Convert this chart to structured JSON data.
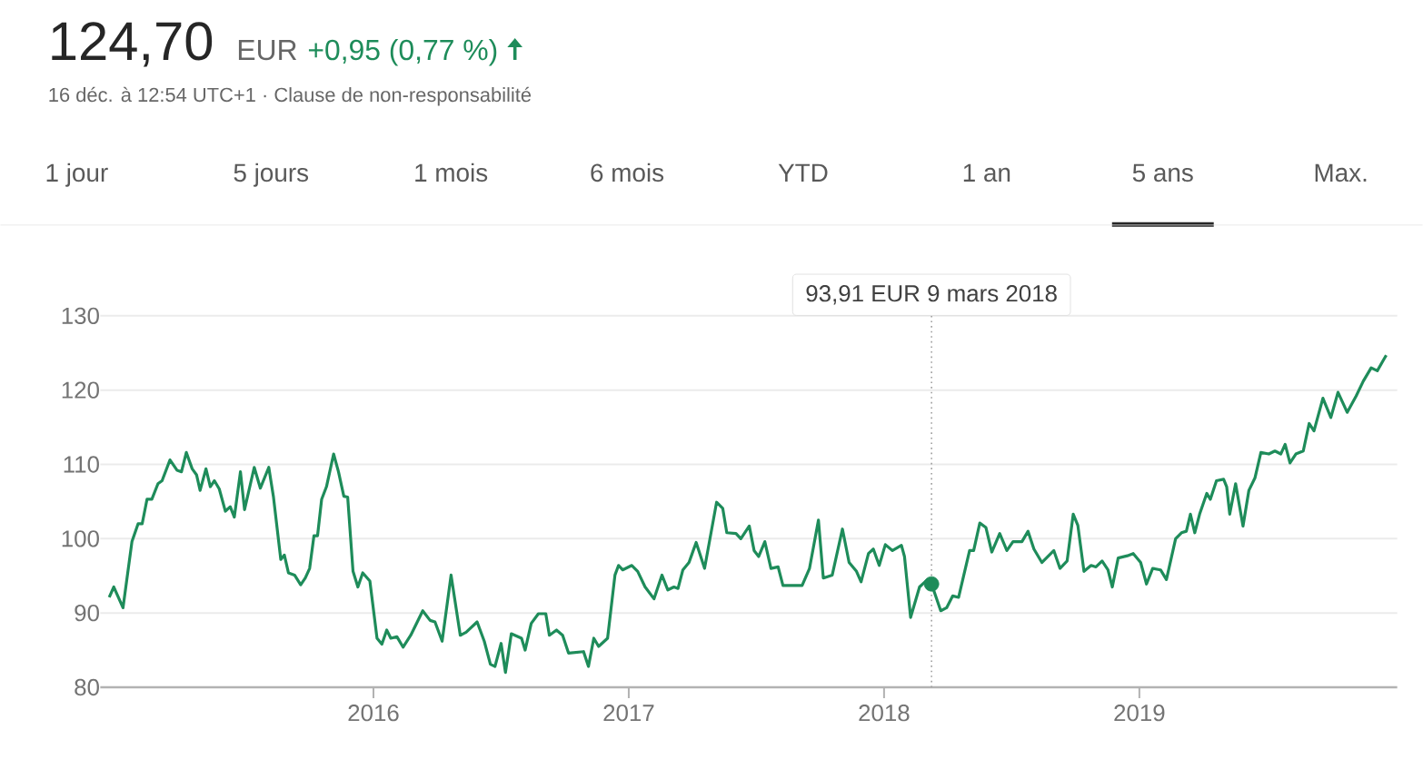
{
  "chart_data": {
    "type": "line",
    "title": "124,70",
    "subtitle": "16 déc. à 12:54 UTC+1 · Clause de non-responsabilité",
    "annotations": [
      "EUR",
      "+0,95 (0,77 %)",
      "1 jour",
      "5 jours",
      "1 mois",
      "6 mois",
      "YTD",
      "1 an",
      "5 ans",
      "Max.",
      "93,91 EUR  9 mars 2018"
    ],
    "xlim": [
      2014.93,
      2020.01
    ],
    "xticks": [
      {
        "value": 2016,
        "label": "2016"
      },
      {
        "value": 2017,
        "label": "2017"
      },
      {
        "value": 2018,
        "label": "2018"
      },
      {
        "value": 2019,
        "label": "2019"
      }
    ],
    "ylim": [
      80,
      130
    ],
    "yticks": [
      80,
      90,
      100,
      110,
      120,
      130
    ],
    "grid": "y",
    "ref_lines": [
      {
        "axis": "x",
        "value": 2018.186,
        "line_style": "dotted",
        "color": "#9e9e9e"
      }
    ],
    "series": [
      {
        "color": "#1e8c5a",
        "marker": "none",
        "x": [
          2014.965,
          2014.983,
          2015.019,
          2015.054,
          2015.078,
          2015.094,
          2015.113,
          2015.132,
          2015.156,
          2015.172,
          2015.203,
          2015.231,
          2015.248,
          2015.267,
          2015.29,
          2015.307,
          2015.321,
          2015.344,
          2015.361,
          2015.377,
          2015.396,
          2015.42,
          2015.439,
          2015.455,
          2015.479,
          2015.495,
          2015.533,
          2015.557,
          2015.59,
          2015.608,
          2015.637,
          2015.651,
          2015.667,
          2015.691,
          2015.715,
          2015.733,
          2015.75,
          2015.767,
          2015.781,
          2015.797,
          2015.816,
          2015.844,
          2015.863,
          2015.884,
          2015.899,
          2015.92,
          2015.939,
          2015.958,
          2015.986,
          2016.014,
          2016.033,
          2016.052,
          2016.068,
          2016.092,
          2016.116,
          2016.146,
          2016.193,
          2016.222,
          2016.241,
          2016.269,
          2016.304,
          2016.34,
          2016.363,
          2016.406,
          2016.434,
          2016.458,
          2016.476,
          2016.5,
          2016.517,
          2016.54,
          2016.58,
          2016.594,
          2016.618,
          2016.646,
          2016.675,
          2016.689,
          2016.717,
          2016.741,
          2016.764,
          2016.823,
          2016.842,
          2016.863,
          2016.882,
          2016.917,
          2016.946,
          2016.96,
          2016.976,
          2017.012,
          2017.035,
          2017.064,
          2017.099,
          2017.13,
          2017.153,
          2017.177,
          2017.193,
          2017.212,
          2017.236,
          2017.264,
          2017.297,
          2017.344,
          2017.368,
          2017.384,
          2017.42,
          2017.439,
          2017.472,
          2017.491,
          2017.509,
          2017.533,
          2017.557,
          2017.585,
          2017.604,
          2017.679,
          2017.708,
          2017.743,
          2017.762,
          2017.797,
          2017.837,
          2017.863,
          2017.892,
          2017.91,
          2017.939,
          2017.958,
          2017.981,
          2018.005,
          2018.033,
          2018.068,
          2018.08,
          2018.104,
          2018.139,
          2018.17,
          2018.186,
          2018.222,
          2018.245,
          2018.269,
          2018.292,
          2018.335,
          2018.351,
          2018.375,
          2018.399,
          2018.422,
          2018.453,
          2018.481,
          2018.505,
          2018.54,
          2018.564,
          2018.587,
          2018.618,
          2018.665,
          2018.689,
          2018.717,
          2018.741,
          2018.759,
          2018.783,
          2018.811,
          2018.83,
          2018.854,
          2018.877,
          2018.894,
          2018.917,
          2018.953,
          2018.976,
          2019.005,
          2019.028,
          2019.052,
          2019.083,
          2019.106,
          2019.142,
          2019.165,
          2019.184,
          2019.2,
          2019.217,
          2019.236,
          2019.264,
          2019.278,
          2019.302,
          2019.33,
          2019.342,
          2019.354,
          2019.377,
          2019.406,
          2019.429,
          2019.453,
          2019.476,
          2019.507,
          2019.531,
          2019.554,
          2019.571,
          2019.59,
          2019.613,
          2019.642,
          2019.665,
          2019.684,
          2019.719,
          2019.75,
          2019.778,
          2019.814,
          2019.849,
          2019.877,
          2019.908,
          2019.932,
          2019.967
        ],
        "values": [
          92.1,
          93.5,
          90.7,
          99.6,
          102,
          102,
          105.3,
          105.3,
          107.4,
          107.8,
          110.6,
          109.2,
          109,
          111.6,
          109.4,
          108.6,
          106.5,
          109.4,
          107,
          107.8,
          106.7,
          103.7,
          104.3,
          102.9,
          109,
          103.9,
          109.6,
          106.8,
          109.6,
          105.7,
          97.2,
          97.8,
          95.4,
          95.1,
          93.8,
          94.7,
          96,
          100.4,
          100.4,
          105.3,
          107,
          111.4,
          109,
          105.7,
          105.6,
          95.6,
          93.5,
          95.4,
          94.3,
          86.6,
          85.8,
          87.7,
          86.6,
          86.8,
          85.4,
          87,
          90.3,
          89,
          88.8,
          86.2,
          95.1,
          87,
          87.4,
          88.8,
          86.2,
          83.1,
          82.8,
          85.9,
          82,
          87.2,
          86.6,
          85,
          88.6,
          89.9,
          89.9,
          87,
          87.7,
          87,
          84.6,
          84.8,
          82.8,
          86.6,
          85.5,
          86.6,
          95.1,
          96.4,
          95.8,
          96.4,
          95.6,
          93.5,
          91.9,
          95.1,
          93.1,
          93.5,
          93.3,
          95.8,
          96.8,
          99.5,
          96,
          104.9,
          104.1,
          100.8,
          100.7,
          100,
          101.7,
          98.4,
          97.6,
          99.6,
          96,
          96.2,
          93.7,
          93.7,
          96,
          102.5,
          94.7,
          95.1,
          101.3,
          96.8,
          95.6,
          94.2,
          98,
          98.6,
          96.4,
          99.2,
          98.4,
          99.1,
          97.6,
          89.4,
          93.5,
          94.5,
          93.91,
          90.3,
          90.7,
          92.3,
          92.1,
          98.4,
          98.4,
          102.1,
          101.5,
          98.2,
          100.7,
          98.4,
          99.6,
          99.6,
          101,
          98.6,
          96.8,
          98.4,
          96,
          97,
          103.3,
          101.8,
          95.6,
          96.4,
          96.2,
          97,
          95.8,
          93.5,
          97.4,
          97.7,
          98,
          96.8,
          93.9,
          96,
          95.8,
          94.5,
          100,
          100.8,
          101,
          103.3,
          100.8,
          103.3,
          106.1,
          105.3,
          107.8,
          108,
          107,
          103.3,
          107.4,
          101.7,
          106.5,
          108.2,
          111.6,
          111.4,
          111.8,
          111.4,
          112.7,
          110.2,
          111.4,
          111.8,
          115.5,
          114.5,
          118.9,
          116.3,
          119.7,
          117,
          119.2,
          121.2,
          123,
          122.6,
          124.7
        ]
      },
      {
        "type": "scatter",
        "color": "#1e8c5a",
        "marker": "circle",
        "x": [
          2018.186
        ],
        "values": [
          93.91
        ]
      }
    ]
  }
}
